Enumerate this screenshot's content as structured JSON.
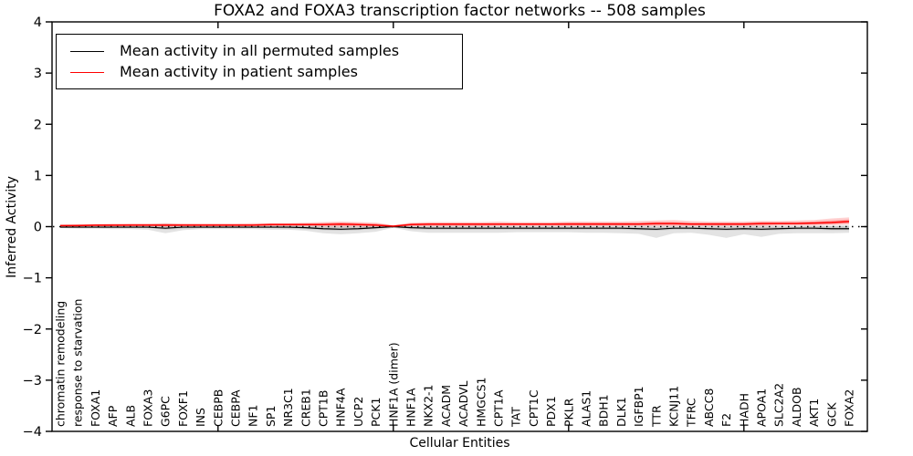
{
  "legend": {
    "items": [
      {
        "label": "Mean activity in all permuted samples",
        "color": "#000000"
      },
      {
        "label": "Mean activity in patient samples",
        "color": "#ff0000"
      }
    ]
  },
  "chart_data": {
    "type": "line",
    "title": "FOXA2 and FOXA3 transcription factor networks -- 508 samples",
    "xlabel": "Cellular Entities",
    "ylabel": "Inferred Activity",
    "ylim": [
      -4,
      4
    ],
    "yticks": [
      4,
      3,
      2,
      1,
      0,
      -1,
      -2,
      -3,
      -4
    ],
    "ytick_labels": [
      "4",
      "3",
      "2",
      "1",
      "0",
      "−1",
      "−2",
      "−3",
      "−4"
    ],
    "xticks_unlabeled": [
      10,
      20,
      30,
      40
    ],
    "grid": false,
    "legend_position": "upper left",
    "zero_line": {
      "style": "dotted",
      "color": "#000000"
    },
    "categories": [
      "chromatin remodeling",
      "response to starvation",
      "FOXA1",
      "AFP",
      "ALB",
      "FOXA3",
      "G6PC",
      "FOXF1",
      "INS",
      "CEBPB",
      "CEBPA",
      "NF1",
      "SP1",
      "NR3C1",
      "CREB1",
      "CPT1B",
      "HNF4A",
      "UCP2",
      "PCK1",
      "HNF1A (dimer)",
      "HNF1A",
      "NKX2-1",
      "ACADM",
      "ACADVL",
      "HMGCS1",
      "CPT1A",
      "TAT",
      "CPT1C",
      "PDX1",
      "PKLR",
      "ALAS1",
      "BDH1",
      "DLK1",
      "IGFBP1",
      "TTR",
      "KCNJ11",
      "TFRC",
      "ABCC8",
      "F2",
      "HADH",
      "APOA1",
      "SLC2A2",
      "ALDOB",
      "AKT1",
      "GCK",
      "FOXA2"
    ],
    "series": [
      {
        "name": "Mean activity in all permuted samples",
        "slug": "permuted-mean-line",
        "color": "#000000",
        "width": 1.2,
        "values": [
          -0.01,
          -0.01,
          -0.01,
          -0.01,
          -0.01,
          -0.01,
          -0.03,
          -0.01,
          -0.01,
          -0.01,
          -0.01,
          -0.01,
          -0.01,
          -0.01,
          -0.02,
          -0.04,
          -0.05,
          -0.04,
          -0.02,
          0,
          -0.02,
          -0.03,
          -0.03,
          -0.03,
          -0.03,
          -0.03,
          -0.03,
          -0.03,
          -0.03,
          -0.03,
          -0.03,
          -0.03,
          -0.03,
          -0.04,
          -0.05,
          -0.03,
          -0.03,
          -0.04,
          -0.05,
          -0.04,
          -0.05,
          -0.04,
          -0.03,
          -0.03,
          -0.04,
          -0.04
        ]
      },
      {
        "name": "Mean activity in patient samples",
        "slug": "patient-mean-line",
        "color": "#ff0000",
        "width": 1.5,
        "values": [
          0.02,
          0.02,
          0.03,
          0.03,
          0.03,
          0.03,
          0.03,
          0.03,
          0.03,
          0.03,
          0.03,
          0.03,
          0.04,
          0.04,
          0.04,
          0.04,
          0.05,
          0.04,
          0.03,
          0.01,
          0.04,
          0.05,
          0.05,
          0.05,
          0.05,
          0.05,
          0.05,
          0.05,
          0.05,
          0.05,
          0.05,
          0.05,
          0.05,
          0.05,
          0.06,
          0.06,
          0.05,
          0.05,
          0.05,
          0.05,
          0.06,
          0.06,
          0.06,
          0.07,
          0.08,
          0.1
        ]
      }
    ],
    "bands": [
      {
        "name": "permuted-outer-band",
        "color": "#000000",
        "opacity": 0.11,
        "low": [
          -0.03,
          -0.04,
          -0.04,
          -0.05,
          -0.05,
          -0.06,
          -0.13,
          -0.07,
          -0.05,
          -0.05,
          -0.05,
          -0.05,
          -0.06,
          -0.06,
          -0.08,
          -0.13,
          -0.15,
          -0.13,
          -0.1,
          -0.02,
          -0.09,
          -0.12,
          -0.12,
          -0.12,
          -0.12,
          -0.12,
          -0.11,
          -0.11,
          -0.11,
          -0.11,
          -0.12,
          -0.12,
          -0.13,
          -0.14,
          -0.22,
          -0.13,
          -0.12,
          -0.16,
          -0.22,
          -0.15,
          -0.2,
          -0.14,
          -0.13,
          -0.13,
          -0.13,
          -0.12
        ],
        "high": [
          0.02,
          0.03,
          0.03,
          0.03,
          0.04,
          0.04,
          0.06,
          0.04,
          0.03,
          0.03,
          0.03,
          0.03,
          0.03,
          0.03,
          0.03,
          0.02,
          0.02,
          0.02,
          0.02,
          0.01,
          0.02,
          0.02,
          0.02,
          0.02,
          0.02,
          0.02,
          0.02,
          0.02,
          0.02,
          0.02,
          0.02,
          0.02,
          0.02,
          0.02,
          0.02,
          0.02,
          0.02,
          0.02,
          0.02,
          0.02,
          0.02,
          0.02,
          0.02,
          0.02,
          0.02,
          0.03
        ]
      },
      {
        "name": "permuted-inner-band",
        "color": "#000000",
        "opacity": 0.11,
        "low": [
          -0.02,
          -0.02,
          -0.02,
          -0.03,
          -0.03,
          -0.03,
          -0.06,
          -0.04,
          -0.03,
          -0.03,
          -0.03,
          -0.03,
          -0.03,
          -0.04,
          -0.05,
          -0.07,
          -0.08,
          -0.07,
          -0.05,
          -0.01,
          -0.05,
          -0.06,
          -0.06,
          -0.06,
          -0.06,
          -0.06,
          -0.06,
          -0.06,
          -0.06,
          -0.06,
          -0.06,
          -0.06,
          -0.06,
          -0.07,
          -0.08,
          -0.06,
          -0.06,
          -0.07,
          -0.08,
          -0.07,
          -0.08,
          -0.07,
          -0.06,
          -0.06,
          -0.07,
          -0.07
        ],
        "high": [
          0.01,
          0.01,
          0.01,
          0.01,
          0.01,
          0.01,
          0.01,
          0.01,
          0.01,
          0.01,
          0.01,
          0.01,
          0.01,
          0.01,
          0.01,
          0.0,
          0.0,
          0.0,
          0.01,
          0.01,
          0.01,
          0.0,
          0.0,
          0.0,
          0.0,
          0.0,
          0.0,
          0.0,
          0.0,
          0.0,
          0.0,
          0.0,
          0.0,
          0.0,
          0.0,
          0.0,
          0.0,
          0.0,
          0.0,
          0.0,
          0.0,
          0.0,
          0.0,
          0.01,
          0.01,
          0.01
        ]
      },
      {
        "name": "patient-outer-band",
        "color": "#ff0000",
        "opacity": 0.18,
        "low": [
          0.0,
          0.0,
          0.01,
          0.01,
          0.01,
          0.01,
          0.0,
          0.01,
          0.01,
          0.01,
          0.01,
          0.01,
          0.01,
          0.01,
          0.01,
          0.0,
          0.0,
          0.0,
          0.0,
          0.0,
          0.01,
          0.01,
          0.01,
          0.01,
          0.01,
          0.01,
          0.01,
          0.01,
          0.01,
          0.01,
          0.01,
          0.01,
          0.01,
          0.01,
          0.01,
          0.01,
          0.01,
          0.01,
          0.01,
          0.01,
          0.01,
          0.02,
          0.02,
          0.02,
          0.03,
          0.04
        ],
        "high": [
          0.04,
          0.05,
          0.05,
          0.06,
          0.06,
          0.06,
          0.07,
          0.06,
          0.06,
          0.06,
          0.06,
          0.07,
          0.07,
          0.07,
          0.08,
          0.09,
          0.1,
          0.09,
          0.08,
          0.03,
          0.08,
          0.09,
          0.09,
          0.09,
          0.09,
          0.1,
          0.09,
          0.09,
          0.09,
          0.1,
          0.1,
          0.1,
          0.1,
          0.11,
          0.12,
          0.13,
          0.11,
          0.1,
          0.1,
          0.1,
          0.11,
          0.11,
          0.12,
          0.13,
          0.16,
          0.18
        ]
      },
      {
        "name": "patient-inner-band",
        "color": "#ff0000",
        "opacity": 0.25,
        "low": [
          0.01,
          0.01,
          0.01,
          0.01,
          0.02,
          0.02,
          0.01,
          0.02,
          0.02,
          0.02,
          0.02,
          0.02,
          0.02,
          0.02,
          0.02,
          0.02,
          0.02,
          0.02,
          0.02,
          0.0,
          0.02,
          0.02,
          0.02,
          0.02,
          0.02,
          0.03,
          0.03,
          0.03,
          0.03,
          0.03,
          0.03,
          0.03,
          0.03,
          0.03,
          0.03,
          0.03,
          0.03,
          0.03,
          0.03,
          0.03,
          0.03,
          0.04,
          0.04,
          0.04,
          0.05,
          0.06
        ],
        "high": [
          0.03,
          0.04,
          0.04,
          0.04,
          0.05,
          0.05,
          0.05,
          0.05,
          0.05,
          0.05,
          0.05,
          0.05,
          0.06,
          0.06,
          0.06,
          0.07,
          0.08,
          0.07,
          0.06,
          0.02,
          0.06,
          0.07,
          0.07,
          0.07,
          0.07,
          0.07,
          0.07,
          0.07,
          0.07,
          0.08,
          0.08,
          0.08,
          0.08,
          0.08,
          0.09,
          0.09,
          0.08,
          0.08,
          0.08,
          0.08,
          0.09,
          0.09,
          0.09,
          0.1,
          0.12,
          0.14
        ]
      }
    ]
  }
}
